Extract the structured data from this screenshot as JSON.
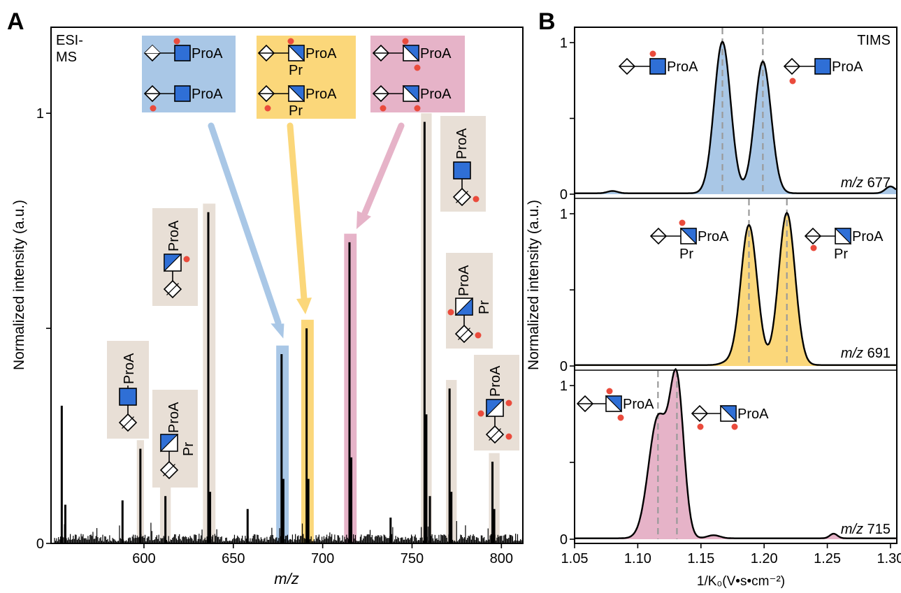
{
  "colors": {
    "blue": "#a9c7e6",
    "blue_stroke": "#6b97c8",
    "yellow": "#fbd77a",
    "pink": "#e6b3c8",
    "beige": "#e8dfd6",
    "glycan_blue": "#2f6fd6",
    "fucose_red": "#ea4b3c",
    "dash": "#9a9a9a"
  },
  "panel_a": {
    "letter": "A",
    "corner_label": [
      "ESI-",
      "MS"
    ],
    "ylabel": "Normalized intensity (a.u.)",
    "xlabel": "m/z",
    "x_ticks": [
      "600",
      "650",
      "700",
      "750",
      "800"
    ],
    "y_ticks": [
      "0",
      "1"
    ],
    "legend_boxes": [
      {
        "color": "blue",
        "labels": [
          "ProA",
          "ProA"
        ]
      },
      {
        "color": "yellow",
        "labels": [
          "ProA",
          "ProA"
        ],
        "sublabels": [
          "Pr",
          "Pr"
        ]
      },
      {
        "color": "pink",
        "labels": [
          "ProA",
          "ProA"
        ]
      }
    ],
    "peak_glycan_labels": [
      "ProA",
      "ProA",
      "ProA",
      "ProA",
      "ProA",
      "ProA",
      "ProA"
    ],
    "pr_labels": [
      "Pr",
      "Pr"
    ]
  },
  "panel_b": {
    "letter": "B",
    "corner_label": "TIMS",
    "ylabel": "Normalized intensity (a.u.)",
    "xlabel": "1/K₀(V•s•cm⁻²)",
    "x_ticks": [
      "1.05",
      "1.10",
      "1.15",
      "1.20",
      "1.25",
      "1.30"
    ],
    "subplots": [
      {
        "mz_prefix": "m/z",
        "mz": "677",
        "color": "blue",
        "glycan_labels": [
          "ProA",
          "ProA"
        ],
        "y_ticks": [
          "0",
          "1"
        ]
      },
      {
        "mz_prefix": "m/z",
        "mz": "691",
        "color": "yellow",
        "glycan_labels": [
          "ProA",
          "ProA"
        ],
        "pr_labels": [
          "Pr",
          "Pr"
        ],
        "y_ticks": [
          "0",
          "1"
        ]
      },
      {
        "mz_prefix": "m/z",
        "mz": "715",
        "color": "pink",
        "glycan_labels": [
          "ProA",
          "ProA"
        ],
        "y_ticks": [
          "0",
          "1"
        ]
      }
    ]
  },
  "chart_data": [
    {
      "type": "bar",
      "panel": "A",
      "xlabel": "m/z",
      "ylabel": "Normalized intensity (a.u.)",
      "xlim": [
        548,
        812
      ],
      "ylim": [
        0,
        1.2
      ],
      "major_peaks": [
        {
          "x": 554,
          "y": 0.32
        },
        {
          "x": 556,
          "y": 0.09
        },
        {
          "x": 588,
          "y": 0.1
        },
        {
          "x": 598,
          "y": 0.22
        },
        {
          "x": 612,
          "y": 0.11
        },
        {
          "x": 636,
          "y": 0.77
        },
        {
          "x": 637,
          "y": 0.12
        },
        {
          "x": 658,
          "y": 0.08
        },
        {
          "x": 677,
          "y": 0.44
        },
        {
          "x": 678,
          "y": 0.15
        },
        {
          "x": 691,
          "y": 0.5
        },
        {
          "x": 692,
          "y": 0.15
        },
        {
          "x": 715,
          "y": 0.7
        },
        {
          "x": 716,
          "y": 0.2
        },
        {
          "x": 738,
          "y": 0.06
        },
        {
          "x": 757,
          "y": 0.98
        },
        {
          "x": 758,
          "y": 0.3
        },
        {
          "x": 760,
          "y": 0.11
        },
        {
          "x": 771,
          "y": 0.36
        },
        {
          "x": 772,
          "y": 0.12
        },
        {
          "x": 795,
          "y": 0.19
        },
        {
          "x": 796,
          "y": 0.08
        }
      ],
      "highlight_bands": [
        {
          "x": [
            596,
            600
          ],
          "color": "beige"
        },
        {
          "x": [
            609,
            615
          ],
          "color": "beige"
        },
        {
          "x": [
            633,
            640
          ],
          "color": "beige"
        },
        {
          "x": [
            674,
            681
          ],
          "color": "blue"
        },
        {
          "x": [
            688,
            695
          ],
          "color": "yellow"
        },
        {
          "x": [
            712,
            719
          ],
          "color": "pink"
        },
        {
          "x": [
            755,
            761
          ],
          "color": "beige"
        },
        {
          "x": [
            769,
            775
          ],
          "color": "beige"
        },
        {
          "x": [
            793,
            799
          ],
          "color": "beige"
        }
      ]
    },
    {
      "type": "area",
      "panel": "B",
      "series_name": "m/z 677",
      "xlim": [
        1.05,
        1.305
      ],
      "ylim": [
        0,
        1.05
      ],
      "peaks": [
        {
          "x": 1.167,
          "y": 1.0,
          "w": 0.0065
        },
        {
          "x": 1.199,
          "y": 0.87,
          "w": 0.0065
        }
      ],
      "minor": [
        {
          "x": 1.08,
          "y": 0.015,
          "w": 0.004
        },
        {
          "x": 1.3,
          "y": 0.045,
          "w": 0.004
        }
      ],
      "dashed_x": [
        1.167,
        1.199
      ]
    },
    {
      "type": "area",
      "panel": "B",
      "series_name": "m/z 691",
      "xlim": [
        1.05,
        1.305
      ],
      "ylim": [
        0,
        1.05
      ],
      "peaks": [
        {
          "x": 1.188,
          "y": 0.92,
          "w": 0.0065
        },
        {
          "x": 1.218,
          "y": 1.0,
          "w": 0.0065
        }
      ],
      "minor": [
        {
          "x": 1.17,
          "y": 0.015,
          "w": 0.005
        }
      ],
      "dashed_x": [
        1.188,
        1.218
      ]
    },
    {
      "type": "area",
      "panel": "B",
      "series_name": "m/z 715",
      "xlim": [
        1.05,
        1.305
      ],
      "ylim": [
        0,
        1.05
      ],
      "peaks": [
        {
          "x": 1.116,
          "y": 0.78,
          "w": 0.0075
        },
        {
          "x": 1.131,
          "y": 0.98,
          "w": 0.0055
        }
      ],
      "minor": [
        {
          "x": 1.16,
          "y": 0.02,
          "w": 0.005
        },
        {
          "x": 1.255,
          "y": 0.03,
          "w": 0.003
        }
      ],
      "dashed_x": [
        1.116,
        1.131
      ]
    }
  ]
}
